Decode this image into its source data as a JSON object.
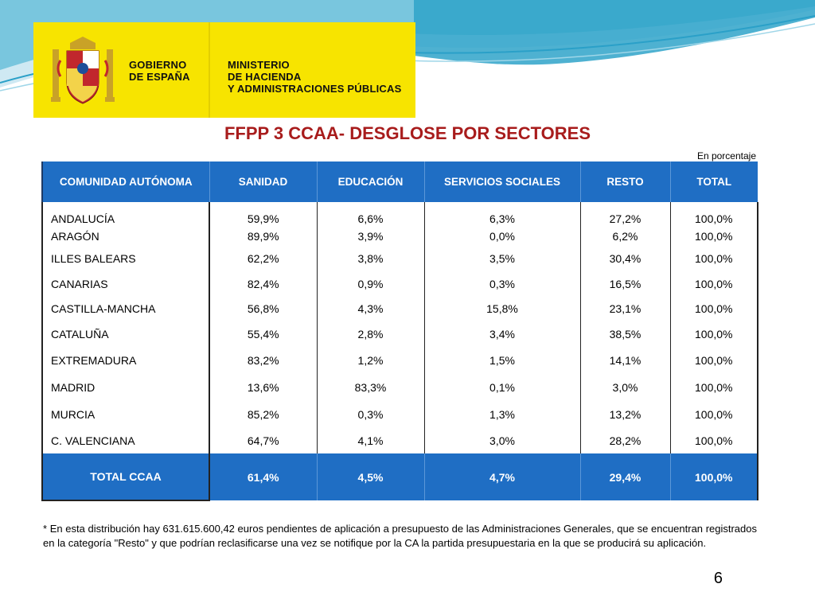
{
  "header": {
    "government_lines": [
      "GOBIERNO",
      "DE ESPAÑA"
    ],
    "ministry_lines": [
      "MINISTERIO",
      "DE HACIENDA",
      "Y ADMINISTRACIONES PÚBLICAS"
    ],
    "brand_yellow": "#f7e400"
  },
  "title": "FFPP 3 CCAA- DESGLOSE POR SECTORES",
  "unit_note": "En porcentaje",
  "table": {
    "header_color": "#1f6ec4",
    "columns": [
      "COMUNIDAD AUTÓNOMA",
      "SANIDAD",
      "EDUCACIÓN",
      "SERVICIOS SOCIALES",
      "RESTO",
      "TOTAL"
    ],
    "rows": [
      [
        "ANDALUCÍA",
        "59,9%",
        "6,6%",
        "6,3%",
        "27,2%",
        "100,0%"
      ],
      [
        "ARAGÓN",
        "89,9%",
        "3,9%",
        "0,0%",
        "6,2%",
        "100,0%"
      ],
      [
        "ILLES BALEARS",
        "62,2%",
        "3,8%",
        "3,5%",
        "30,4%",
        "100,0%"
      ],
      [
        "CANARIAS",
        "82,4%",
        "0,9%",
        "0,3%",
        "16,5%",
        "100,0%"
      ],
      [
        "CASTILLA-MANCHA",
        "56,8%",
        "4,3%",
        "15,8%",
        "23,1%",
        "100,0%"
      ],
      [
        "CATALUÑA",
        "55,4%",
        "2,8%",
        "3,4%",
        "38,5%",
        "100,0%"
      ],
      [
        "EXTREMADURA",
        "83,2%",
        "1,2%",
        "1,5%",
        "14,1%",
        "100,0%"
      ],
      [
        "MADRID",
        "13,6%",
        "83,3%",
        "0,1%",
        "3,0%",
        "100,0%"
      ],
      [
        "MURCIA",
        "85,2%",
        "0,3%",
        "1,3%",
        "13,2%",
        "100,0%"
      ],
      [
        "C. VALENCIANA",
        "64,7%",
        "4,1%",
        "3,0%",
        "28,2%",
        "100,0%"
      ]
    ],
    "total_row": [
      "TOTAL CCAA",
      "61,4%",
      "4,5%",
      "4,7%",
      "29,4%",
      "100,0%"
    ]
  },
  "footnote": "* En esta distribución hay 631.615.600,42 euros pendientes de aplicación a presupuesto de las Administraciones Generales, que se encuentran registrados en la categoría \"Resto\" y que podrían reclasificarse una vez se notifique por la CA la partida presupuestaria en la que se producirá su aplicación.",
  "page_number": "6"
}
